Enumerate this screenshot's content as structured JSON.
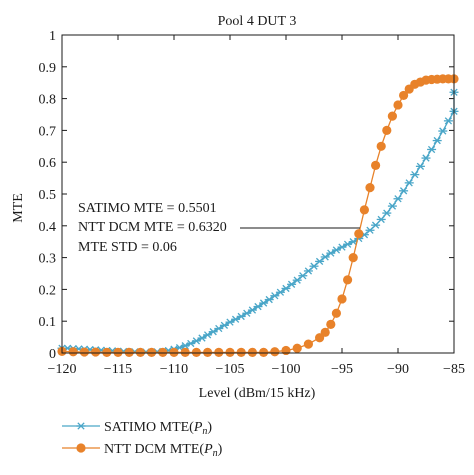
{
  "chart_data": {
    "type": "line",
    "title": "Pool 4 DUT 3",
    "xlabel": "Level (dBm/15 kHz)",
    "ylabel": "MTE",
    "xlim": [
      -120,
      -85
    ],
    "ylim": [
      0,
      1
    ],
    "xticks": [
      -120,
      -115,
      -110,
      -105,
      -100,
      -95,
      -90,
      -85
    ],
    "xtick_labels": [
      "−120",
      "−115",
      "−110",
      "−105",
      "−100",
      "−95",
      "−90",
      "−85"
    ],
    "yticks": [
      0,
      0.1,
      0.2,
      0.3,
      0.4,
      0.5,
      0.6,
      0.7,
      0.8,
      0.9,
      1
    ],
    "ytick_labels": [
      "0",
      "0.1",
      "0.2",
      "0.3",
      "0.4",
      "0.5",
      "0.6",
      "0.7",
      "0.8",
      "0.9",
      "1"
    ],
    "grid": false,
    "legend_position": "bottom",
    "annotations": [
      "SATIMO MTE = 0.5501",
      "NTT DCM MTE = 0.6320",
      "MTE STD = 0.06"
    ],
    "series": [
      {
        "name": "SATIMO MTE(",
        "name_sub": "P",
        "name_subsub": "n",
        "name_tail": ")",
        "color": "#4aa6c8",
        "marker": "asterisk",
        "points": [
          [
            -120,
            0.015
          ],
          [
            -119.5,
            0.015
          ],
          [
            -119,
            0.014
          ],
          [
            -118.5,
            0.013
          ],
          [
            -118,
            0.012
          ],
          [
            -117.5,
            0.011
          ],
          [
            -117,
            0.01
          ],
          [
            -116.5,
            0.009
          ],
          [
            -116,
            0.008
          ],
          [
            -115.5,
            0.007
          ],
          [
            -115,
            0.006
          ],
          [
            -114.5,
            0.005
          ],
          [
            -114,
            0.004
          ],
          [
            -113.5,
            0.004
          ],
          [
            -113,
            0.003
          ],
          [
            -112.5,
            0.003
          ],
          [
            -112,
            0.003
          ],
          [
            -111.5,
            0.004
          ],
          [
            -111,
            0.005
          ],
          [
            -110.5,
            0.008
          ],
          [
            -110,
            0.012
          ],
          [
            -109.5,
            0.017
          ],
          [
            -109,
            0.023
          ],
          [
            -108.5,
            0.03
          ],
          [
            -108,
            0.038
          ],
          [
            -107.5,
            0.047
          ],
          [
            -107,
            0.057
          ],
          [
            -106.5,
            0.067
          ],
          [
            -106,
            0.077
          ],
          [
            -105.5,
            0.087
          ],
          [
            -105,
            0.097
          ],
          [
            -104.5,
            0.106
          ],
          [
            -104,
            0.115
          ],
          [
            -103.5,
            0.125
          ],
          [
            -103,
            0.135
          ],
          [
            -102.5,
            0.146
          ],
          [
            -102,
            0.157
          ],
          [
            -101.5,
            0.168
          ],
          [
            -101,
            0.18
          ],
          [
            -100.5,
            0.191
          ],
          [
            -100,
            0.203
          ],
          [
            -99.5,
            0.216
          ],
          [
            -99,
            0.229
          ],
          [
            -98.5,
            0.243
          ],
          [
            -98,
            0.258
          ],
          [
            -97.5,
            0.273
          ],
          [
            -97,
            0.288
          ],
          [
            -96.5,
            0.302
          ],
          [
            -96,
            0.314
          ],
          [
            -95.5,
            0.324
          ],
          [
            -95,
            0.333
          ],
          [
            -94.5,
            0.342
          ],
          [
            -94,
            0.35
          ],
          [
            -93.5,
            0.36
          ],
          [
            -93,
            0.372
          ],
          [
            -92.5,
            0.386
          ],
          [
            -92,
            0.402
          ],
          [
            -91.5,
            0.42
          ],
          [
            -91,
            0.44
          ],
          [
            -90.5,
            0.462
          ],
          [
            -90,
            0.485
          ],
          [
            -89.5,
            0.51
          ],
          [
            -89,
            0.535
          ],
          [
            -88.5,
            0.561
          ],
          [
            -88,
            0.587
          ],
          [
            -87.5,
            0.613
          ],
          [
            -87,
            0.64
          ],
          [
            -86.5,
            0.668
          ],
          [
            -86,
            0.698
          ],
          [
            -85.5,
            0.73
          ],
          [
            -85,
            0.76
          ],
          [
            -84.9,
            0.82
          ]
        ]
      },
      {
        "name": "NTT DCM MTE(",
        "name_sub": "P",
        "name_subsub": "n",
        "name_tail": ")",
        "color": "#e8822a",
        "marker": "circle",
        "points": [
          [
            -120,
            0.005
          ],
          [
            -119,
            0.004
          ],
          [
            -118,
            0.003
          ],
          [
            -117,
            0.003
          ],
          [
            -116,
            0.002
          ],
          [
            -115,
            0.002
          ],
          [
            -114,
            0.002
          ],
          [
            -113,
            0.002
          ],
          [
            -112,
            0.002
          ],
          [
            -111,
            0.002
          ],
          [
            -110,
            0.002
          ],
          [
            -109,
            0.002
          ],
          [
            -108,
            0.002
          ],
          [
            -107,
            0.002
          ],
          [
            -106,
            0.002
          ],
          [
            -105,
            0.002
          ],
          [
            -104,
            0.002
          ],
          [
            -103,
            0.002
          ],
          [
            -102,
            0.002
          ],
          [
            -101,
            0.004
          ],
          [
            -100,
            0.008
          ],
          [
            -99,
            0.015
          ],
          [
            -98,
            0.028
          ],
          [
            -97,
            0.048
          ],
          [
            -96.5,
            0.065
          ],
          [
            -96,
            0.09
          ],
          [
            -95.5,
            0.125
          ],
          [
            -95,
            0.17
          ],
          [
            -94.5,
            0.23
          ],
          [
            -94,
            0.3
          ],
          [
            -93.5,
            0.375
          ],
          [
            -93,
            0.45
          ],
          [
            -92.5,
            0.52
          ],
          [
            -92,
            0.59
          ],
          [
            -91.5,
            0.65
          ],
          [
            -91,
            0.7
          ],
          [
            -90.5,
            0.745
          ],
          [
            -90,
            0.78
          ],
          [
            -89.5,
            0.81
          ],
          [
            -89,
            0.83
          ],
          [
            -88.5,
            0.845
          ],
          [
            -88,
            0.852
          ],
          [
            -87.5,
            0.858
          ],
          [
            -87,
            0.86
          ],
          [
            -86.5,
            0.861
          ],
          [
            -86,
            0.862
          ],
          [
            -85.5,
            0.862
          ],
          [
            -85,
            0.862
          ]
        ]
      }
    ]
  }
}
